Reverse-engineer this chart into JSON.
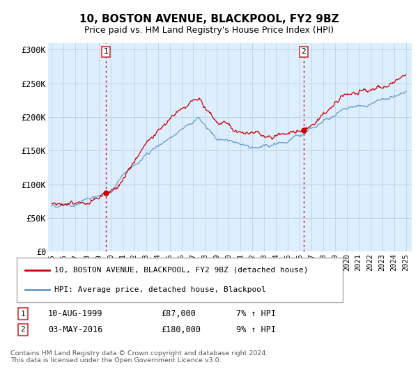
{
  "title": "10, BOSTON AVENUE, BLACKPOOL, FY2 9BZ",
  "subtitle": "Price paid vs. HM Land Registry's House Price Index (HPI)",
  "ylabel_ticks": [
    "£0",
    "£50K",
    "£100K",
    "£150K",
    "£200K",
    "£250K",
    "£300K"
  ],
  "ytick_values": [
    0,
    50000,
    100000,
    150000,
    200000,
    250000,
    300000
  ],
  "ylim": [
    0,
    310000
  ],
  "sale1_year": 1999.6,
  "sale1_price": 87000,
  "sale2_year": 2016.35,
  "sale2_price": 180000,
  "legend_line1": "10, BOSTON AVENUE, BLACKPOOL, FY2 9BZ (detached house)",
  "legend_line2": "HPI: Average price, detached house, Blackpool",
  "annotation1_date": "10-AUG-1999",
  "annotation1_price": "£87,000",
  "annotation1_hpi": "7% ↑ HPI",
  "annotation2_date": "03-MAY-2016",
  "annotation2_price": "£180,000",
  "annotation2_hpi": "9% ↑ HPI",
  "copyright": "Contains HM Land Registry data © Crown copyright and database right 2024.\nThis data is licensed under the Open Government Licence v3.0.",
  "line_color_red": "#cc0000",
  "line_color_blue": "#6699cc",
  "bg_plot": "#ddeeff",
  "background_color": "#ffffff",
  "grid_color": "#bbccdd"
}
